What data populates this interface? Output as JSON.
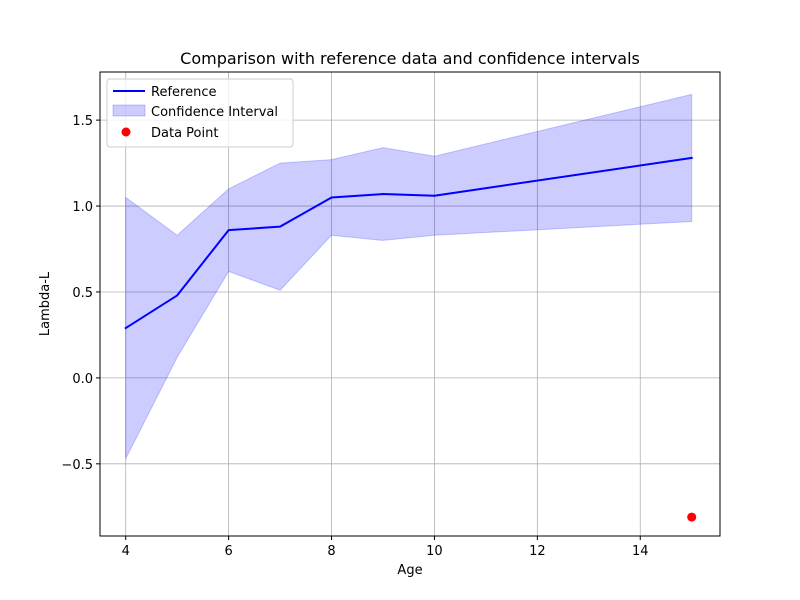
{
  "chart_data": {
    "type": "line",
    "title": "Comparison with reference data and confidence intervals",
    "xlabel": "Age",
    "ylabel": "Lambda-L",
    "xlim": [
      3.5,
      15.55
    ],
    "ylim": [
      -0.92,
      1.78
    ],
    "xticks": [
      4,
      6,
      8,
      10,
      12,
      14
    ],
    "yticks": [
      -0.5,
      0.0,
      0.5,
      1.0,
      1.5
    ],
    "grid": true,
    "legend_position": "upper-left",
    "series": [
      {
        "name": "Reference",
        "kind": "line",
        "color": "#0000ff",
        "x": [
          4,
          5,
          6,
          7,
          8,
          9,
          10,
          15
        ],
        "y": [
          0.29,
          0.48,
          0.86,
          0.88,
          1.05,
          1.07,
          1.06,
          1.28
        ]
      },
      {
        "name": "Confidence Interval",
        "kind": "band",
        "color": "#0000ff",
        "x": [
          4,
          5,
          6,
          7,
          8,
          9,
          10,
          15
        ],
        "lower": [
          -0.47,
          0.12,
          0.62,
          0.51,
          0.83,
          0.8,
          0.83,
          0.91
        ],
        "upper": [
          1.05,
          0.83,
          1.1,
          1.25,
          1.27,
          1.34,
          1.29,
          1.65
        ]
      },
      {
        "name": "Data Point",
        "kind": "scatter",
        "color": "#ff0000",
        "x": [
          15
        ],
        "y": [
          -0.81
        ]
      }
    ]
  }
}
